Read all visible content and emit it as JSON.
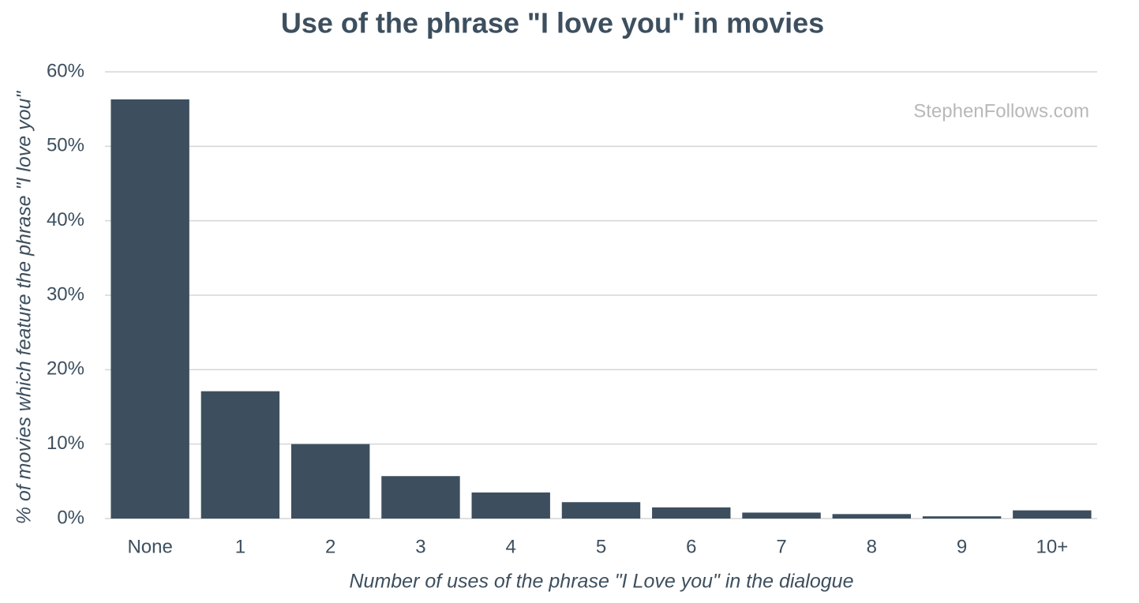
{
  "chart_data": {
    "type": "bar",
    "title": "Use of the phrase \"I love you\" in movies",
    "x_label": "Number of uses of the phrase \"I Love you\" in the dialogue",
    "y_label": "% of movies which feature the phrase \"I love you\"",
    "annotation": "StephenFollows.com",
    "categories": [
      "None",
      "1",
      "2",
      "3",
      "4",
      "5",
      "6",
      "7",
      "8",
      "9",
      "10+"
    ],
    "values": [
      56.3,
      17.1,
      10.0,
      5.7,
      3.5,
      2.2,
      1.5,
      0.8,
      0.6,
      0.3,
      1.1
    ],
    "color": "#3d4f5e",
    "ylim": [
      0,
      60
    ],
    "yticks": [
      {
        "value": 0,
        "label": "0%"
      },
      {
        "value": 10,
        "label": "10%"
      },
      {
        "value": 20,
        "label": "20%"
      },
      {
        "value": 30,
        "label": "30%"
      },
      {
        "value": 40,
        "label": "40%"
      },
      {
        "value": 50,
        "label": "50%"
      },
      {
        "value": 60,
        "label": "60%"
      }
    ],
    "grid": true
  }
}
